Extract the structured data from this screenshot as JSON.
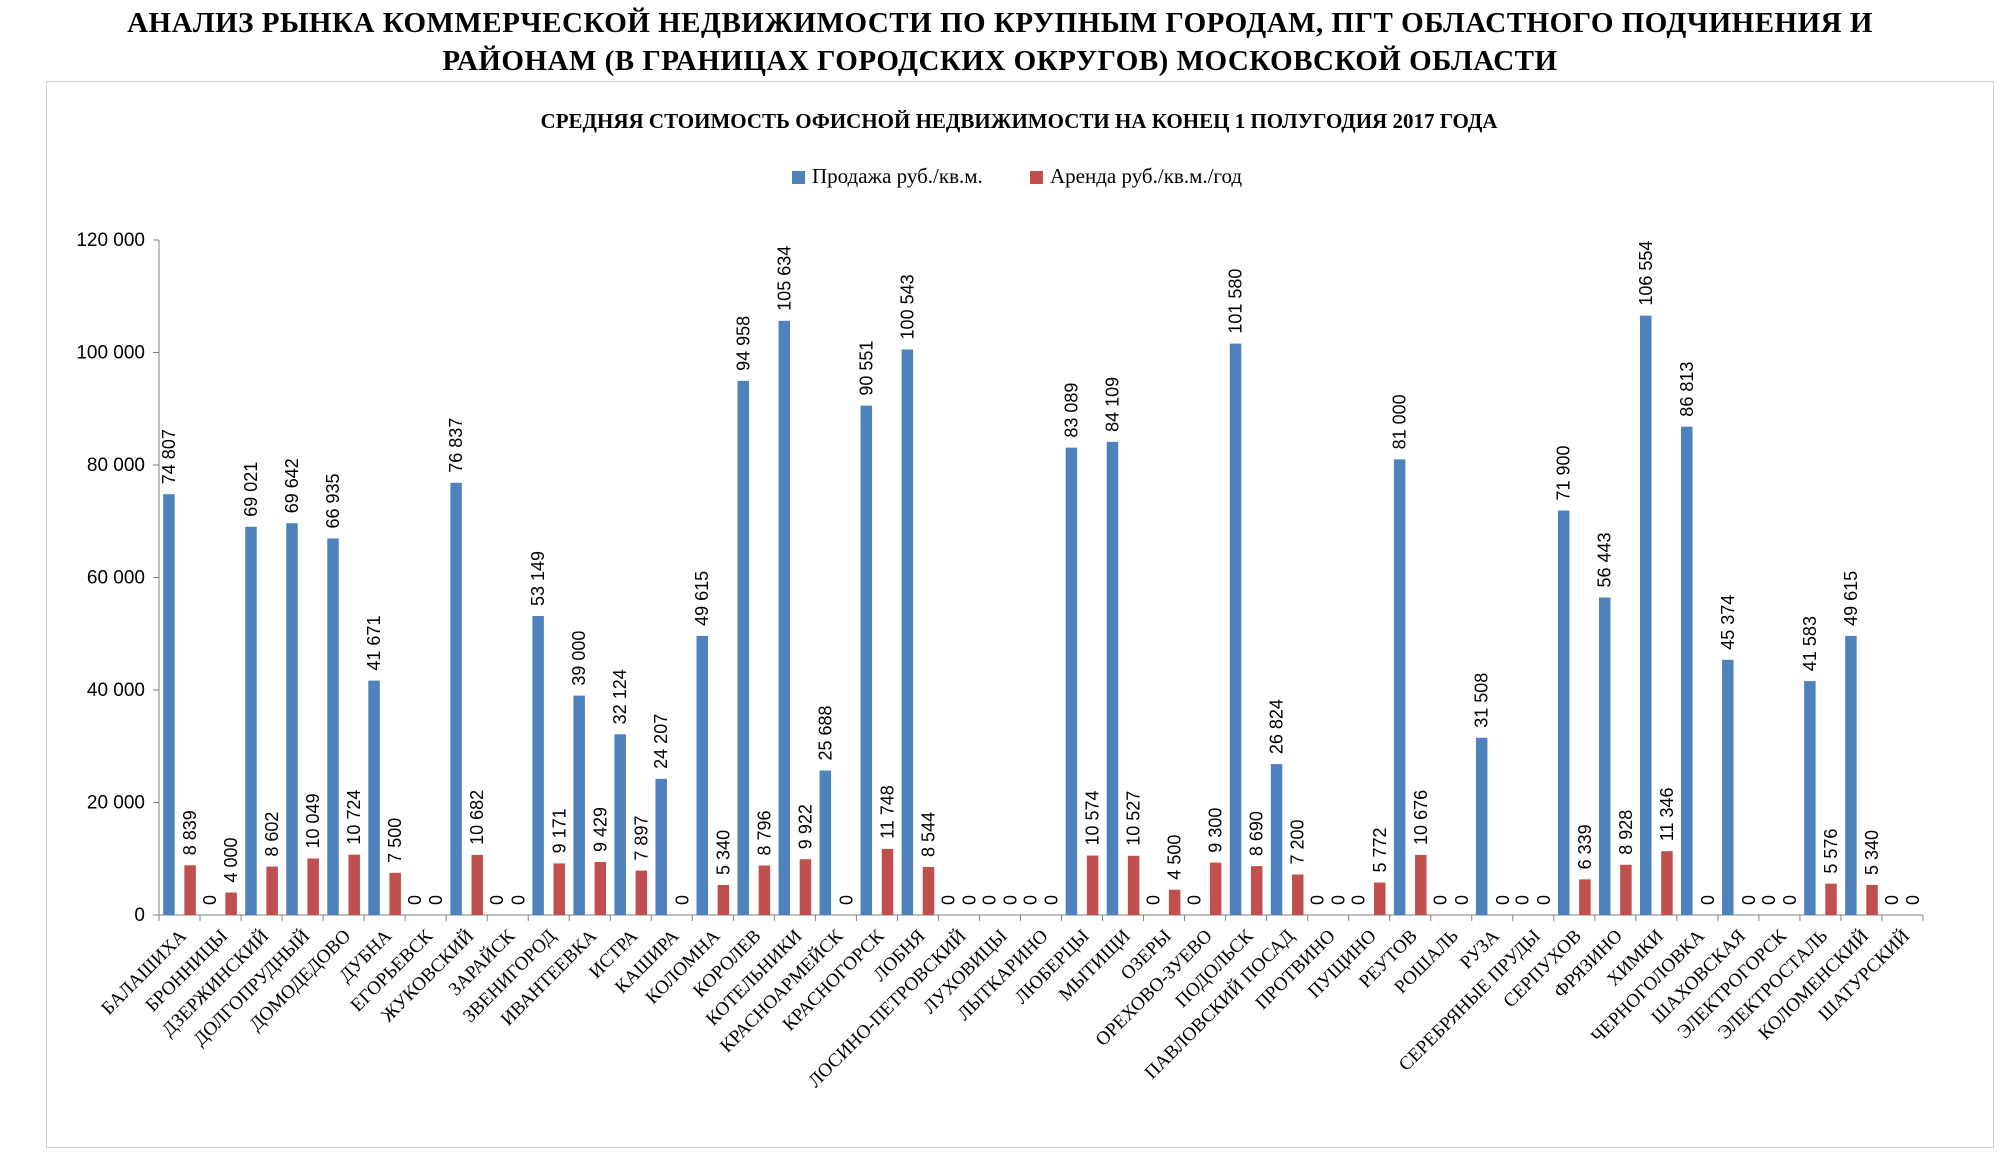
{
  "page": {
    "title_line1": "АНАЛИЗ РЫНКА КОММЕРЧЕСКОЙ НЕДВИЖИМОСТИ ПО КРУПНЫМ ГОРОДАМ, ПГТ ОБЛАСТНОГО ПОДЧИНЕНИЯ И",
    "title_line2": "РАЙОНАМ (В ГРАНИЦАХ ГОРОДСКИХ ОКРУГОВ) МОСКОВСКОЙ ОБЛАСТИ"
  },
  "chart_data": {
    "type": "bar",
    "title": "СРЕДНЯЯ СТОИМОСТЬ ОФИСНОЙ НЕДВИЖИМОСТИ НА КОНЕЦ 1 ПОЛУГОДИЯ 2017 ГОДА",
    "xlabel": "",
    "ylabel": "",
    "ylim": [
      0,
      120000
    ],
    "yticks": [
      0,
      20000,
      40000,
      60000,
      80000,
      100000,
      120000
    ],
    "ytick_labels": [
      "0",
      "20 000",
      "40 000",
      "60 000",
      "80 000",
      "100 000",
      "120 000"
    ],
    "grid": false,
    "legend_position": "top-center",
    "categories": [
      "БАЛАШИХА",
      "БРОННИЦЫ",
      "ДЗЕРЖИНСКИЙ",
      "ДОЛГОПРУДНЫЙ",
      "ДОМОДЕДОВО",
      "ДУБНА",
      "ЕГОРЬЕВСК",
      "ЖУКОВСКИЙ",
      "ЗАРАЙСК",
      "ЗВЕНИГОРОД",
      "ИВАНТЕЕВКА",
      "ИСТРА",
      "КАШИРА",
      "КОЛОМНА",
      "КОРОЛЕВ",
      "КОТЕЛЬНИКИ",
      "КРАСНОАРМЕЙСК",
      "КРАСНОГОРСК",
      "ЛОБНЯ",
      "ЛОСИНО-ПЕТРОВСКИЙ",
      "ЛУХОВИЦЫ",
      "ЛЫТКАРИНО",
      "ЛЮБЕРЦЫ",
      "МЫТИЩИ",
      "ОЗЕРЫ",
      "ОРЕХОВО-ЗУЕВО",
      "ПОДОЛЬСК",
      "ПАВЛОВСКИЙ ПОСАД",
      "ПРОТВИНО",
      "ПУЩИНО",
      "РЕУТОВ",
      "РОШАЛЬ",
      "РУЗА",
      "СЕРЕБРЯНЫЕ ПРУДЫ",
      "СЕРПУХОВ",
      "ФРЯЗИНО",
      "ХИМКИ",
      "ЧЕРНОГОЛОВКА",
      "ШАХОВСКАЯ",
      "ЭЛЕКТРОГОРСК",
      "ЭЛЕКТРОСТАЛЬ",
      "КОЛОМЕНСКИЙ",
      "ШАТУРСКИЙ"
    ],
    "series": [
      {
        "name": "Продажа руб./кв.м.",
        "color": "#4f81bd",
        "values": [
          74807,
          0,
          69021,
          69642,
          66935,
          41671,
          0,
          76837,
          0,
          53149,
          39000,
          32124,
          24207,
          49615,
          94958,
          105634,
          25688,
          90551,
          100543,
          0,
          0,
          0,
          83089,
          84109,
          0,
          0,
          101580,
          26824,
          0,
          0,
          81000,
          0,
          31508,
          0,
          71900,
          56443,
          106554,
          86813,
          45374,
          0,
          41583,
          49615,
          0
        ],
        "labels": [
          "74 807",
          "0",
          "69 021",
          "69 642",
          "66 935",
          "41 671",
          "0",
          "76 837",
          "0",
          "53 149",
          "39 000",
          "32 124",
          "24 207",
          "49 615",
          "94 958",
          "105 634",
          "25 688",
          "90 551",
          "100 543",
          "0",
          "0",
          "0",
          "83 089",
          "84 109",
          "0",
          "0",
          "101 580",
          "26 824",
          "0",
          "0",
          "81 000",
          "0",
          "31 508",
          "0",
          "71 900",
          "56 443",
          "106 554",
          "86 813",
          "45 374",
          "0",
          "41 583",
          "49 615",
          "0"
        ]
      },
      {
        "name": "Аренда руб./кв.м./год",
        "color": "#c0504d",
        "values": [
          8839,
          4000,
          8602,
          10049,
          10724,
          7500,
          0,
          10682,
          0,
          9171,
          9429,
          7897,
          0,
          5340,
          8796,
          9922,
          0,
          11748,
          8544,
          0,
          0,
          0,
          10574,
          10527,
          4500,
          9300,
          8690,
          7200,
          0,
          5772,
          10676,
          0,
          0,
          0,
          6339,
          8928,
          11346,
          0,
          0,
          0,
          5576,
          5340,
          0
        ],
        "labels": [
          "8 839",
          "4 000",
          "8 602",
          "10 049",
          "10 724",
          "7 500",
          "0",
          "10 682",
          "0",
          "9 171",
          "9 429",
          "7 897",
          "0",
          "5 340",
          "8 796",
          "9 922",
          "0",
          "11 748",
          "8 544",
          "0",
          "0",
          "0",
          "10 574",
          "10 527",
          "4 500",
          "9 300",
          "8 690",
          "7 200",
          "0",
          "5 772",
          "10 676",
          "0",
          "0",
          "0",
          "6 339",
          "8 928",
          "11 346",
          "0",
          "0",
          "0",
          "5 576",
          "5 340",
          "0"
        ]
      }
    ]
  }
}
